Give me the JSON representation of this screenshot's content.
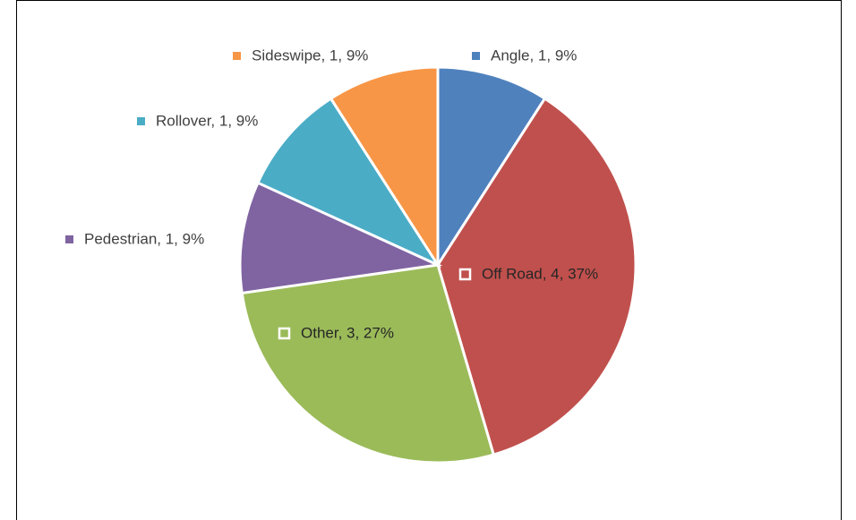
{
  "chart_data": {
    "type": "pie",
    "categories": [
      "Angle",
      "Off Road",
      "Other",
      "Pedestrian",
      "Rollover",
      "Sideswipe"
    ],
    "values": [
      1,
      4,
      3,
      1,
      1,
      1
    ],
    "value_labels": [
      "Angle, 1, 9%",
      "Off Road, 4, 37%",
      "Other, 3, 27%",
      "Pedestrian, 1, 9%",
      "Rollover, 1, 9%",
      "Sideswipe, 1, 9%"
    ],
    "colors": [
      "#4f81bd",
      "#c0504d",
      "#9bbb59",
      "#8064a2",
      "#4bacc6",
      "#f79646"
    ]
  }
}
